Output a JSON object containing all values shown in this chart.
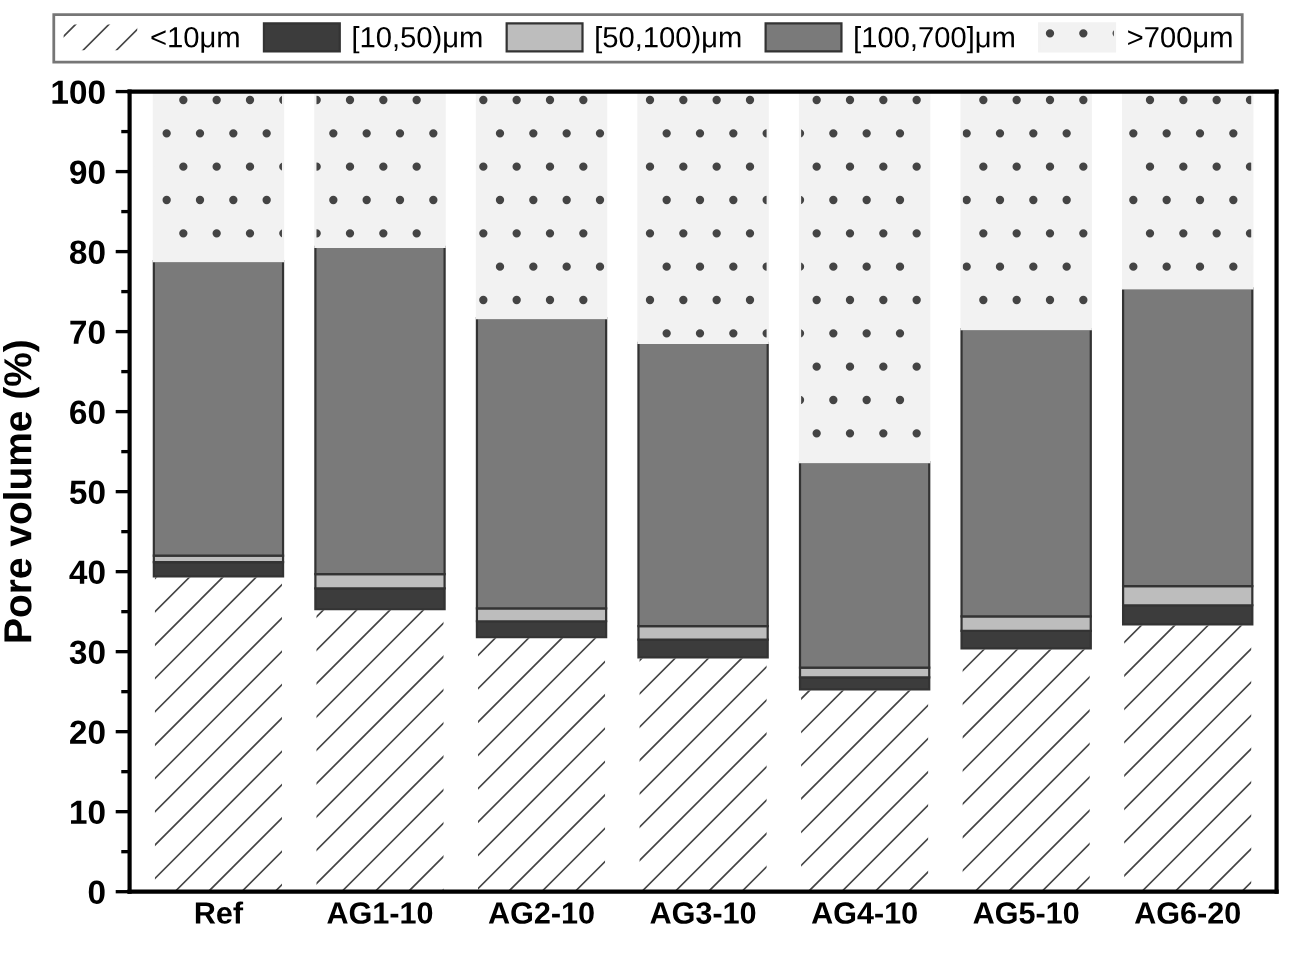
{
  "chart_data": {
    "type": "bar",
    "stacked": true,
    "ylabel": "Pore volume (%)",
    "categories": [
      "Ref",
      "AG1-10",
      "AG2-10",
      "AG3-10",
      "AG4-10",
      "AG5-10",
      "AG6-20"
    ],
    "series": [
      {
        "name": "<10μm",
        "color": "#ffffff",
        "values": [
          39.4,
          35.3,
          31.8,
          29.3,
          25.3,
          30.4,
          33.4
        ]
      },
      {
        "name": "[10,50)μm",
        "color": "#3c3c3c",
        "values": [
          1.8,
          2.6,
          2.0,
          2.2,
          1.5,
          2.2,
          2.4
        ]
      },
      {
        "name": "[50,100)μm",
        "color": "#bdbdbd",
        "values": [
          0.8,
          1.8,
          1.6,
          1.7,
          1.2,
          1.8,
          2.4
        ]
      },
      {
        "name": "[100,700]μm",
        "color": "#7a7a7a",
        "values": [
          36.8,
          40.9,
          36.3,
          35.4,
          25.7,
          35.9,
          37.2
        ]
      },
      {
        "name": ">700μm",
        "color": "#f2f2f2",
        "values": [
          21.2,
          19.4,
          28.3,
          31.4,
          46.3,
          29.7,
          24.6
        ]
      }
    ],
    "ylim": [
      0,
      100
    ],
    "yticks": [
      0,
      10,
      20,
      30,
      40,
      50,
      60,
      70,
      80,
      90,
      100
    ],
    "grid": false,
    "legend": "top"
  }
}
